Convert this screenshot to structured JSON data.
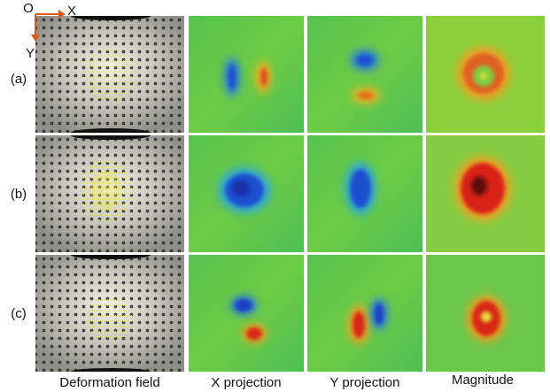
{
  "axes": {
    "origin": "O",
    "x": "X",
    "y": "Y"
  },
  "rows": [
    {
      "label": "(a)"
    },
    {
      "label": "(b)"
    },
    {
      "label": "(c)"
    }
  ],
  "columns": [
    "Deformation field",
    "X projection",
    "Y projection",
    "Magnitude"
  ]
}
